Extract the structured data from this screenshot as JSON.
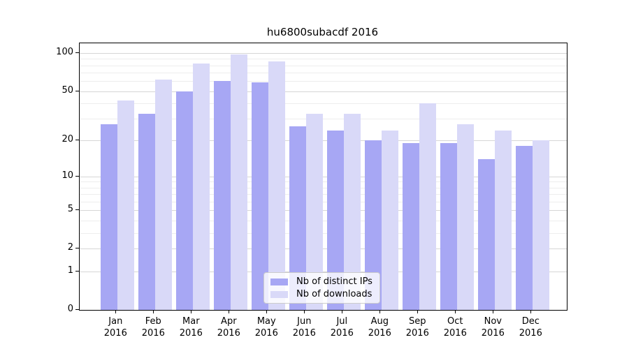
{
  "title": "hu6800subacdf 2016",
  "colors": {
    "distinct_ips_bar": "#a7a7f4",
    "downloads_bar": "#d9d9f8",
    "grid_major": "#d6d6d6",
    "grid_minor": "#ededed",
    "axis": "#000000"
  },
  "chart_data": {
    "type": "bar",
    "title": "hu6800subacdf 2016",
    "xlabel": "",
    "ylabel": "",
    "yscale": "log1p",
    "ylim": [
      0,
      120
    ],
    "grid": "on",
    "legend_position": "bottom-center",
    "year": "2016",
    "categories": [
      "Jan",
      "Feb",
      "Mar",
      "Apr",
      "May",
      "Jun",
      "Jul",
      "Aug",
      "Sep",
      "Oct",
      "Nov",
      "Dec"
    ],
    "series": [
      {
        "name": "Nb of distinct IPs",
        "color": "#a7a7f4",
        "values": [
          27,
          33,
          50,
          60,
          59,
          26,
          24,
          20,
          19,
          19,
          14,
          18
        ]
      },
      {
        "name": "Nb of downloads",
        "color": "#d9d9f8",
        "values": [
          42,
          62,
          83,
          97,
          86,
          33,
          33,
          24,
          40,
          27,
          24,
          20
        ]
      }
    ],
    "ytick_labels": [
      "100",
      "50",
      "20",
      "10",
      "5",
      "2",
      "1",
      "0"
    ],
    "ytick_values": [
      100,
      50,
      20,
      10,
      5,
      2,
      1,
      0
    ],
    "minor_grid_values": [
      3,
      4,
      6,
      7,
      8,
      9,
      30,
      40,
      60,
      70,
      80,
      90
    ]
  }
}
